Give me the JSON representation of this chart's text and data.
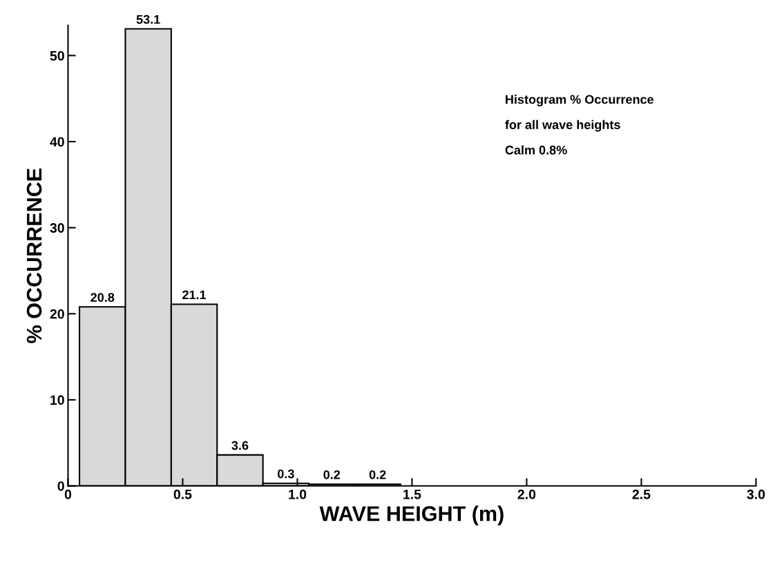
{
  "chart_data": {
    "type": "histogram",
    "xlabel": "WAVE HEIGHT (m)",
    "ylabel": "% OCCURRENCE",
    "bins": [
      0.05,
      0.25,
      0.45,
      0.65,
      0.85,
      1.05,
      1.25,
      1.45
    ],
    "values": [
      20.8,
      53.1,
      21.1,
      3.6,
      0.3,
      0.2,
      0.2
    ],
    "color": "#d9d9d9",
    "data_labels": true,
    "xlim": [
      0,
      3
    ],
    "ylim": [
      0,
      53.5
    ],
    "xticks": [
      0,
      0.5,
      {
        "value": 1,
        "label": "1.0"
      },
      1.5,
      {
        "value": 2,
        "label": "2.0"
      },
      2.5,
      {
        "value": 3,
        "label": "3.0"
      }
    ],
    "yticks": [
      0,
      10,
      20,
      30,
      40,
      50
    ],
    "grid": false,
    "legend": false,
    "annotations": [
      "Histogram % Occurrence",
      "for all wave heights",
      "Calm 0.8%"
    ]
  }
}
